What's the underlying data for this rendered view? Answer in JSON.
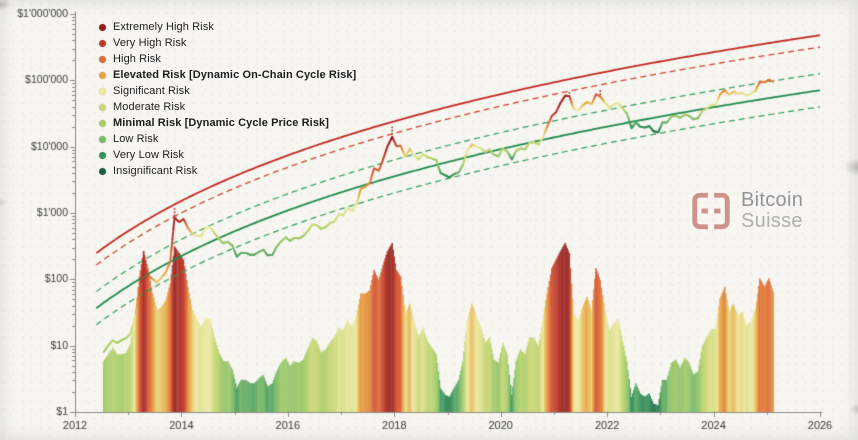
{
  "watermark": {
    "line1": "Bitcoin",
    "line2": "Suisse"
  },
  "chart_data": {
    "type": "line",
    "y_scale": "log",
    "grid": false,
    "legend_position": "top-left",
    "xlim": [
      2012,
      2026
    ],
    "ylim_log": [
      0,
      6
    ],
    "x_ticks": [
      2012,
      2014,
      2016,
      2018,
      2020,
      2022,
      2024,
      2026
    ],
    "y_ticks": [
      {
        "label": "$1",
        "log": 0
      },
      {
        "label": "$10",
        "log": 1
      },
      {
        "label": "$100",
        "log": 2
      },
      {
        "label": "$1'000",
        "log": 3
      },
      {
        "label": "$10'000",
        "log": 4
      },
      {
        "label": "$100'000",
        "log": 5
      },
      {
        "label": "$1'000'000",
        "log": 6
      }
    ],
    "legend": [
      {
        "label": "Extremely High Risk",
        "color": "#8f1d1d",
        "bold": false
      },
      {
        "label": "Very High Risk",
        "color": "#c13a2a",
        "bold": false
      },
      {
        "label": "High Risk",
        "color": "#e06b35",
        "bold": false
      },
      {
        "label": "Elevated Risk [Dynamic On-Chain Cycle Risk]",
        "color": "#e5a83f",
        "bold": true
      },
      {
        "label": "Significant Risk",
        "color": "#ece9a0",
        "bold": false
      },
      {
        "label": "Moderate Risk",
        "color": "#ccd878",
        "bold": false
      },
      {
        "label": "Minimal Risk [Dynamic Cycle Price Risk]",
        "color": "#a6cc66",
        "bold": true
      },
      {
        "label": "Low Risk",
        "color": "#7cb968",
        "bold": false
      },
      {
        "label": "Very Low Risk",
        "color": "#33915a",
        "bold": false
      },
      {
        "label": "Insignificant Risk",
        "color": "#1c5e40",
        "bold": false
      }
    ],
    "bands": [
      {
        "name": "cycle-top-solid",
        "color": "#c0281e",
        "dash": false,
        "b": 4.7,
        "c": -0.103,
        "width": 1.8
      },
      {
        "name": "cycle-top-dashed",
        "color": "#cf4433",
        "dash": true,
        "b": 4.7,
        "c": -0.283,
        "width": 1.3
      },
      {
        "name": "mid-band-upper-dashed",
        "color": "#2f9e58",
        "dash": true,
        "b": 4.7,
        "c": -0.683,
        "width": 1.2
      },
      {
        "name": "mid-band-solid",
        "color": "#1e8a4c",
        "dash": false,
        "b": 4.7,
        "c": -0.933,
        "width": 1.8
      },
      {
        "name": "mid-band-lower-dashed",
        "color": "#2f9e58",
        "dash": true,
        "b": 4.7,
        "c": -1.183,
        "width": 1.2
      }
    ],
    "bars": {
      "source": "risk",
      "max_log": 2.55
    },
    "peaks": [
      {
        "x": 2013.29,
        "y": 260
      },
      {
        "x": 2013.87,
        "y": 1150
      },
      {
        "x": 2017.96,
        "y": 19500
      },
      {
        "x": 2021.29,
        "y": 64900
      },
      {
        "x": 2021.87,
        "y": 69000
      }
    ],
    "price": [
      [
        2012.54,
        8,
        0.3
      ],
      [
        2012.62,
        10,
        0.34
      ],
      [
        2012.71,
        12,
        0.38
      ],
      [
        2012.79,
        11,
        0.34
      ],
      [
        2012.87,
        12,
        0.34
      ],
      [
        2012.96,
        13,
        0.35
      ],
      [
        2013.04,
        15,
        0.4
      ],
      [
        2013.12,
        25,
        0.55
      ],
      [
        2013.21,
        60,
        0.8
      ],
      [
        2013.29,
        140,
        0.95
      ],
      [
        2013.37,
        115,
        0.85
      ],
      [
        2013.46,
        100,
        0.7
      ],
      [
        2013.54,
        90,
        0.6
      ],
      [
        2013.62,
        105,
        0.62
      ],
      [
        2013.71,
        130,
        0.66
      ],
      [
        2013.79,
        185,
        0.76
      ],
      [
        2013.87,
        850,
        0.98
      ],
      [
        2013.96,
        730,
        0.94
      ],
      [
        2014.04,
        810,
        0.9
      ],
      [
        2014.12,
        600,
        0.74
      ],
      [
        2014.21,
        480,
        0.6
      ],
      [
        2014.29,
        450,
        0.55
      ],
      [
        2014.37,
        450,
        0.5
      ],
      [
        2014.46,
        600,
        0.56
      ],
      [
        2014.54,
        620,
        0.55
      ],
      [
        2014.62,
        500,
        0.44
      ],
      [
        2014.71,
        400,
        0.35
      ],
      [
        2014.79,
        350,
        0.3
      ],
      [
        2014.87,
        370,
        0.3
      ],
      [
        2014.96,
        320,
        0.25
      ],
      [
        2015.04,
        220,
        0.14
      ],
      [
        2015.12,
        250,
        0.19
      ],
      [
        2015.21,
        250,
        0.19
      ],
      [
        2015.29,
        235,
        0.17
      ],
      [
        2015.37,
        235,
        0.17
      ],
      [
        2015.46,
        260,
        0.2
      ],
      [
        2015.54,
        280,
        0.22
      ],
      [
        2015.62,
        230,
        0.15
      ],
      [
        2015.71,
        235,
        0.17
      ],
      [
        2015.79,
        310,
        0.24
      ],
      [
        2015.87,
        370,
        0.29
      ],
      [
        2015.96,
        430,
        0.32
      ],
      [
        2016.04,
        380,
        0.27
      ],
      [
        2016.12,
        420,
        0.3
      ],
      [
        2016.21,
        415,
        0.29
      ],
      [
        2016.29,
        450,
        0.31
      ],
      [
        2016.37,
        530,
        0.37
      ],
      [
        2016.46,
        670,
        0.44
      ],
      [
        2016.54,
        660,
        0.42
      ],
      [
        2016.62,
        580,
        0.35
      ],
      [
        2016.71,
        610,
        0.37
      ],
      [
        2016.79,
        700,
        0.41
      ],
      [
        2016.87,
        740,
        0.44
      ],
      [
        2016.96,
        960,
        0.5
      ],
      [
        2017.04,
        920,
        0.48
      ],
      [
        2017.12,
        1180,
        0.54
      ],
      [
        2017.21,
        1080,
        0.5
      ],
      [
        2017.29,
        1350,
        0.57
      ],
      [
        2017.37,
        2300,
        0.7
      ],
      [
        2017.46,
        2500,
        0.7
      ],
      [
        2017.54,
        2850,
        0.72
      ],
      [
        2017.62,
        4700,
        0.84
      ],
      [
        2017.71,
        4350,
        0.78
      ],
      [
        2017.79,
        6450,
        0.87
      ],
      [
        2017.87,
        10000,
        0.95
      ],
      [
        2017.96,
        14100,
        1.0
      ],
      [
        2018.04,
        10200,
        0.84
      ],
      [
        2018.12,
        10300,
        0.8
      ],
      [
        2018.21,
        7000,
        0.58
      ],
      [
        2018.29,
        9250,
        0.64
      ],
      [
        2018.37,
        7500,
        0.54
      ],
      [
        2018.46,
        6400,
        0.44
      ],
      [
        2018.54,
        7750,
        0.5
      ],
      [
        2018.62,
        7000,
        0.42
      ],
      [
        2018.71,
        6600,
        0.38
      ],
      [
        2018.79,
        6300,
        0.34
      ],
      [
        2018.87,
        4000,
        0.14
      ],
      [
        2018.96,
        3700,
        0.1
      ],
      [
        2019.04,
        3450,
        0.09
      ],
      [
        2019.12,
        3850,
        0.14
      ],
      [
        2019.21,
        4100,
        0.19
      ],
      [
        2019.29,
        5300,
        0.3
      ],
      [
        2019.37,
        8550,
        0.54
      ],
      [
        2019.46,
        10800,
        0.64
      ],
      [
        2019.54,
        10000,
        0.57
      ],
      [
        2019.62,
        9600,
        0.51
      ],
      [
        2019.71,
        8300,
        0.41
      ],
      [
        2019.79,
        9150,
        0.44
      ],
      [
        2019.87,
        7550,
        0.31
      ],
      [
        2019.96,
        7200,
        0.29
      ],
      [
        2020.04,
        9350,
        0.41
      ],
      [
        2020.12,
        8550,
        0.34
      ],
      [
        2020.21,
        6450,
        0.1
      ],
      [
        2020.29,
        8600,
        0.3
      ],
      [
        2020.37,
        9450,
        0.37
      ],
      [
        2020.46,
        9140,
        0.34
      ],
      [
        2020.54,
        11350,
        0.44
      ],
      [
        2020.62,
        11650,
        0.44
      ],
      [
        2020.71,
        10780,
        0.39
      ],
      [
        2020.79,
        13800,
        0.54
      ],
      [
        2020.87,
        19700,
        0.7
      ],
      [
        2020.96,
        29000,
        0.85
      ],
      [
        2021.04,
        33100,
        0.9
      ],
      [
        2021.12,
        45100,
        0.95
      ],
      [
        2021.21,
        58800,
        1.0
      ],
      [
        2021.29,
        57750,
        0.94
      ],
      [
        2021.37,
        37300,
        0.58
      ],
      [
        2021.46,
        35000,
        0.54
      ],
      [
        2021.54,
        41600,
        0.62
      ],
      [
        2021.62,
        47100,
        0.68
      ],
      [
        2021.71,
        43800,
        0.6
      ],
      [
        2021.79,
        61300,
        0.85
      ],
      [
        2021.87,
        57000,
        0.78
      ],
      [
        2021.96,
        46200,
        0.6
      ],
      [
        2022.04,
        38500,
        0.48
      ],
      [
        2022.12,
        43200,
        0.52
      ],
      [
        2022.21,
        45500,
        0.55
      ],
      [
        2022.29,
        37700,
        0.42
      ],
      [
        2022.37,
        31800,
        0.3
      ],
      [
        2022.46,
        19000,
        0.09
      ],
      [
        2022.54,
        23300,
        0.17
      ],
      [
        2022.62,
        20050,
        0.11
      ],
      [
        2022.71,
        19400,
        0.09
      ],
      [
        2022.79,
        20500,
        0.11
      ],
      [
        2022.87,
        17100,
        0.05
      ],
      [
        2022.96,
        16500,
        0.04
      ],
      [
        2023.04,
        23100,
        0.19
      ],
      [
        2023.12,
        23150,
        0.19
      ],
      [
        2023.21,
        28500,
        0.29
      ],
      [
        2023.29,
        29250,
        0.31
      ],
      [
        2023.37,
        27200,
        0.26
      ],
      [
        2023.46,
        30480,
        0.32
      ],
      [
        2023.54,
        29230,
        0.29
      ],
      [
        2023.62,
        25930,
        0.22
      ],
      [
        2023.71,
        26970,
        0.24
      ],
      [
        2023.79,
        34650,
        0.39
      ],
      [
        2023.87,
        37700,
        0.44
      ],
      [
        2023.96,
        42270,
        0.49
      ],
      [
        2024.04,
        42580,
        0.49
      ],
      [
        2024.12,
        61200,
        0.67
      ],
      [
        2024.21,
        71300,
        0.74
      ],
      [
        2024.29,
        60640,
        0.59
      ],
      [
        2024.37,
        67500,
        0.64
      ],
      [
        2024.46,
        62680,
        0.57
      ],
      [
        2024.54,
        64600,
        0.59
      ],
      [
        2024.62,
        58970,
        0.51
      ],
      [
        2024.71,
        63330,
        0.54
      ],
      [
        2024.79,
        70200,
        0.61
      ],
      [
        2024.87,
        96400,
        0.79
      ],
      [
        2024.96,
        93400,
        0.74
      ],
      [
        2025.04,
        102400,
        0.79
      ],
      [
        2025.12,
        95000,
        0.71
      ]
    ]
  }
}
